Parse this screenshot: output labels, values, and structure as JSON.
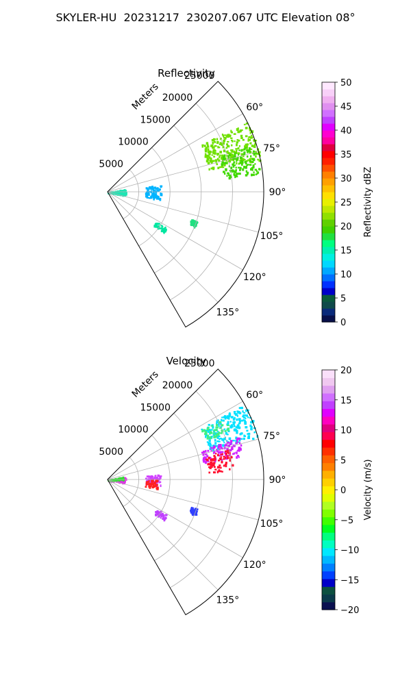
{
  "figure": {
    "title": "SKYLER-HU  20231217  230207.067 UTC Elevation 08°"
  },
  "chart_data": [
    {
      "type": "heatmap",
      "projection": "polar sector",
      "title": "Reflectivity",
      "range_label": "Meters",
      "range_ticks": [
        5000,
        10000,
        15000,
        20000,
        25000
      ],
      "range_max": 25000,
      "azimuth_range_deg": [
        45,
        150
      ],
      "azimuth_ticks": [
        "60°",
        "75°",
        "90°",
        "105°",
        "120°",
        "135°"
      ],
      "grid": true,
      "colorbar": {
        "label": "Reflectivity dBZ",
        "min": 0,
        "max": 50,
        "ticks": [
          "0",
          "5",
          "10",
          "15",
          "20",
          "25",
          "30",
          "35",
          "40",
          "45",
          "50"
        ],
        "colors": [
          "#08104a",
          "#0a2a7a",
          "#0f4a4a",
          "#0a5a3c",
          "#0000c8",
          "#0030ff",
          "#0070ff",
          "#00a8ff",
          "#00d8ff",
          "#00f0e0",
          "#00f0b0",
          "#00ff80",
          "#20e040",
          "#40d000",
          "#60d000",
          "#90e000",
          "#c0e800",
          "#e8f000",
          "#ffe000",
          "#ffc000",
          "#ffa000",
          "#ff8000",
          "#ff5000",
          "#ff2000",
          "#ff0000",
          "#e00040",
          "#ff00a0",
          "#ff00d0",
          "#e000ff",
          "#c040ff",
          "#d070ff",
          "#e090f0",
          "#f0b0f0",
          "#f8d0f8",
          "#ffe8ff"
        ]
      },
      "echo_regions": [
        {
          "az": [
            63,
            78
          ],
          "range_m": [
            16500,
            25000
          ],
          "value_dbz": 19,
          "color": "#6fe000"
        },
        {
          "az": [
            72,
            83
          ],
          "range_m": [
            18500,
            24500
          ],
          "value_dbz": 17,
          "color": "#40d800"
        },
        {
          "az": [
            80,
            100
          ],
          "range_m": [
            0,
            2800
          ],
          "value_dbz": 13,
          "color": "#1ee5b4"
        },
        {
          "az": [
            82,
            98
          ],
          "range_m": [
            6000,
            8500
          ],
          "value_dbz": 11,
          "color": "#00b4ff"
        },
        {
          "az": [
            121,
            126
          ],
          "range_m": [
            9000,
            11000
          ],
          "value_dbz": 14,
          "color": "#00e6a0"
        },
        {
          "az": [
            108,
            112
          ],
          "range_m": [
            14000,
            15000
          ],
          "value_dbz": 14,
          "color": "#20e080"
        }
      ]
    },
    {
      "type": "heatmap",
      "projection": "polar sector",
      "title": "Velocity",
      "range_label": "Meters",
      "range_ticks": [
        5000,
        10000,
        15000,
        20000,
        25000
      ],
      "range_max": 25000,
      "azimuth_range_deg": [
        45,
        150
      ],
      "azimuth_ticks": [
        "60°",
        "75°",
        "90°",
        "105°",
        "120°",
        "135°"
      ],
      "grid": true,
      "colorbar": {
        "label": "Velocity (m/s)",
        "min": -20,
        "max": 20,
        "ticks": [
          "−20",
          "−15",
          "−10",
          "−5",
          "0",
          "5",
          "10",
          "15",
          "20"
        ],
        "colors": [
          "#0a1050",
          "#0a3a4a",
          "#0c5040",
          "#0000c8",
          "#0040ff",
          "#0080ff",
          "#00b8ff",
          "#00e8ff",
          "#00ffc0",
          "#00ff80",
          "#00ff20",
          "#40ff00",
          "#80ff00",
          "#b0ff20",
          "#e0ff00",
          "#fff000",
          "#ffd000",
          "#ffb000",
          "#ff8000",
          "#ff6000",
          "#ff3000",
          "#ff0000",
          "#ff0050",
          "#e00080",
          "#ff00c0",
          "#e000ff",
          "#c040ff",
          "#d070ff",
          "#e0a0f0",
          "#f0c8f0",
          "#fae0fa"
        ]
      },
      "echo_regions": [
        {
          "az": [
            61,
            74
          ],
          "range_m": [
            17000,
            25000
          ],
          "value_ms": -11,
          "color": "#00e0ff"
        },
        {
          "az": [
            62,
            68
          ],
          "range_m": [
            17000,
            21000
          ],
          "value_ms": -8,
          "color": "#40f080"
        },
        {
          "az": [
            72,
            80
          ],
          "range_m": [
            15500,
            22000
          ],
          "value_ms": 14,
          "color": "#d020ff"
        },
        {
          "az": [
            76,
            86
          ],
          "range_m": [
            16000,
            20000
          ],
          "value_ms": 10,
          "color": "#ff1030"
        },
        {
          "az": [
            80,
            100
          ],
          "range_m": [
            0,
            2800
          ],
          "value_ms": 13,
          "color": "#e030e8"
        },
        {
          "az": [
            78,
            90
          ],
          "range_m": [
            0,
            2500
          ],
          "value_ms": -6,
          "color": "#30e030"
        },
        {
          "az": [
            84,
            96
          ],
          "range_m": [
            6000,
            8500
          ],
          "value_ms": 14,
          "color": "#d040ff"
        },
        {
          "az": [
            90,
            100
          ],
          "range_m": [
            6000,
            8000
          ],
          "value_ms": 9,
          "color": "#ff2020"
        },
        {
          "az": [
            121,
            126
          ],
          "range_m": [
            9000,
            11000
          ],
          "value_ms": 14,
          "color": "#c040ff"
        },
        {
          "az": [
            108,
            112
          ],
          "range_m": [
            14000,
            15000
          ],
          "value_ms": -15,
          "color": "#3040ff"
        }
      ]
    }
  ]
}
